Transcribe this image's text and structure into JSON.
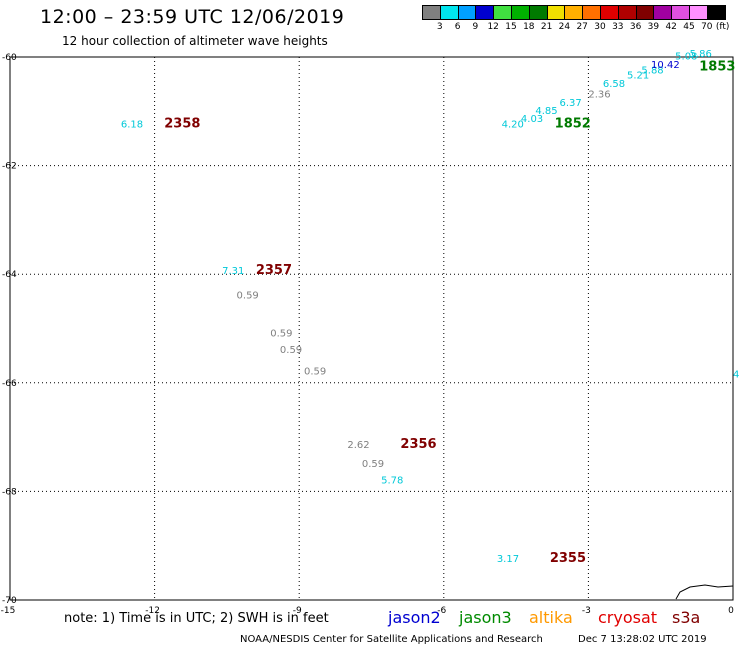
{
  "header": {
    "title": "12:00 – 23:59 UTC 12/06/2019",
    "subtitle": "12 hour collection of altimeter wave heights"
  },
  "legend": {
    "unit": "(ft)",
    "bins": [
      {
        "label": "3",
        "color": "#808080"
      },
      {
        "label": "6",
        "color": "#00e5ee"
      },
      {
        "label": "9",
        "color": "#00a0ff"
      },
      {
        "label": "12",
        "color": "#0000d0"
      },
      {
        "label": "15",
        "color": "#40e040"
      },
      {
        "label": "18",
        "color": "#00b000"
      },
      {
        "label": "21",
        "color": "#007a00"
      },
      {
        "label": "24",
        "color": "#f0e000"
      },
      {
        "label": "27",
        "color": "#ffb000"
      },
      {
        "label": "30",
        "color": "#ff7000"
      },
      {
        "label": "33",
        "color": "#e00000"
      },
      {
        "label": "36",
        "color": "#b00000"
      },
      {
        "label": "39",
        "color": "#800000"
      },
      {
        "label": "42",
        "color": "#a000a0"
      },
      {
        "label": "45",
        "color": "#e050e0"
      },
      {
        "label": "70",
        "color": "#ff90ff"
      },
      {
        "label": "",
        "color": "#000000"
      }
    ]
  },
  "footer": {
    "note": "note: 1) Time is in UTC; 2) SWH is in feet",
    "satellites": [
      {
        "name": "jason2",
        "color": "#0000d0"
      },
      {
        "name": "jason3",
        "color": "#008a00"
      },
      {
        "name": "altika",
        "color": "#ff9900"
      },
      {
        "name": "cryosat",
        "color": "#e00000"
      },
      {
        "name": "s3a",
        "color": "#800000"
      }
    ],
    "credit": "NOAA/NESDIS Center for Satellite Applications and Research",
    "timestamp": "Dec  7 13:28:02 UTC 2019"
  },
  "chart_data": {
    "type": "scatter",
    "title": "12:00 – 23:59 UTC 12/06/2019",
    "subtitle": "12 hour collection of altimeter wave heights",
    "xlim": [
      -15,
      0
    ],
    "ylim": [
      -70,
      -60
    ],
    "x_ticks": [
      "-15",
      "-12",
      "-9",
      "-6",
      "-3",
      "0"
    ],
    "y_ticks": [
      "-60",
      "-62",
      "-64",
      "-66",
      "-68",
      "-70"
    ],
    "grid": true,
    "swh_labels": [
      {
        "x": -12.7,
        "y": -61.3,
        "text": "6.18",
        "color": "#00c8d8"
      },
      {
        "x": -10.6,
        "y": -64.0,
        "text": "7.31",
        "color": "#00c8d8"
      },
      {
        "x": -10.3,
        "y": -64.45,
        "text": "0.59",
        "color": "#808080"
      },
      {
        "x": -9.6,
        "y": -65.15,
        "text": "0.59",
        "color": "#808080"
      },
      {
        "x": -9.4,
        "y": -65.45,
        "text": "0.59",
        "color": "#808080"
      },
      {
        "x": -8.9,
        "y": -65.85,
        "text": "0.59",
        "color": "#808080"
      },
      {
        "x": -8.0,
        "y": -67.2,
        "text": "2.62",
        "color": "#808080"
      },
      {
        "x": -7.7,
        "y": -67.55,
        "text": "0.59",
        "color": "#808080"
      },
      {
        "x": -7.3,
        "y": -67.85,
        "text": "5.78",
        "color": "#00c8d8"
      },
      {
        "x": -4.9,
        "y": -69.3,
        "text": "3.17",
        "color": "#00c8d8"
      },
      {
        "x": -4.8,
        "y": -61.3,
        "text": "4.20",
        "color": "#00c8d8"
      },
      {
        "x": -4.4,
        "y": -61.2,
        "text": "4.03",
        "color": "#00c8d8"
      },
      {
        "x": -4.1,
        "y": -61.05,
        "text": "4.85",
        "color": "#00c8d8"
      },
      {
        "x": -3.6,
        "y": -60.9,
        "text": "6.37",
        "color": "#00c8d8"
      },
      {
        "x": -3.0,
        "y": -60.75,
        "text": "2.36",
        "color": "#808080"
      },
      {
        "x": -2.7,
        "y": -60.55,
        "text": "6.58",
        "color": "#00c8d8"
      },
      {
        "x": -2.2,
        "y": -60.4,
        "text": "5.21",
        "color": "#00c8d8"
      },
      {
        "x": -1.9,
        "y": -60.3,
        "text": "5.88",
        "color": "#00c8d8"
      },
      {
        "x": -1.7,
        "y": -60.2,
        "text": "10.42",
        "color": "#0000d0"
      },
      {
        "x": -1.2,
        "y": -60.05,
        "text": "5.08",
        "color": "#00c8d8"
      },
      {
        "x": -0.9,
        "y": -60.0,
        "text": "5.86",
        "color": "#00c8d8"
      },
      {
        "x": 0.0,
        "y": -65.9,
        "text": "4.",
        "color": "#00c8d8"
      }
    ],
    "pass_times": [
      {
        "x": -11.8,
        "y": -61.3,
        "text": "2358",
        "color": "#800000"
      },
      {
        "x": -9.9,
        "y": -64.0,
        "text": "2357",
        "color": "#800000"
      },
      {
        "x": -6.9,
        "y": -67.2,
        "text": "2356",
        "color": "#800000"
      },
      {
        "x": -3.8,
        "y": -69.3,
        "text": "2355",
        "color": "#800000"
      },
      {
        "x": -3.7,
        "y": -61.3,
        "text": "1852",
        "color": "#007a00"
      },
      {
        "x": -0.7,
        "y": -60.25,
        "text": "1853",
        "color": "#007a00"
      }
    ]
  }
}
